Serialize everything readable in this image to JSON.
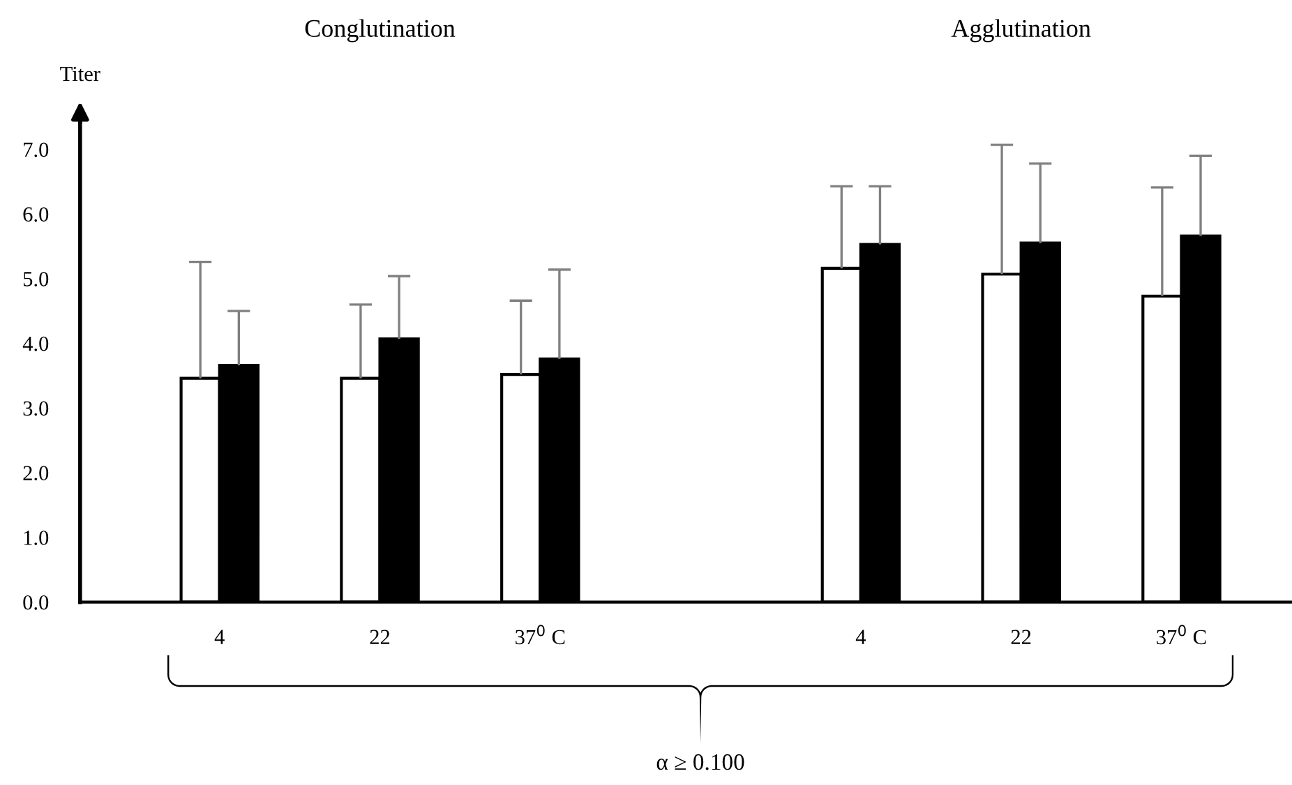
{
  "chart_data": {
    "type": "bar",
    "categories": [
      "4",
      "22",
      "37$^{0}$ C",
      null,
      "4",
      "22",
      "37$^{0}$ C"
    ],
    "ylabel": "Titer",
    "series": [
      {
        "color": "#ffffff",
        "values": [
          3.46,
          3.46,
          3.52,
          null,
          5.16,
          5.07,
          4.73
        ],
        "errors": [
          [
            3.46,
            5.26
          ],
          [
            3.46,
            4.6
          ],
          [
            3.52,
            4.66
          ],
          null,
          [
            5.16,
            6.43
          ],
          [
            5.07,
            7.07
          ],
          [
            4.73,
            6.41
          ]
        ]
      },
      {
        "color": "#000000",
        "values": [
          3.66,
          4.07,
          3.76,
          null,
          5.53,
          5.55,
          5.66
        ],
        "errors": [
          [
            3.66,
            4.5
          ],
          [
            4.07,
            5.04
          ],
          [
            3.76,
            5.14
          ],
          null,
          [
            5.53,
            6.43
          ],
          [
            5.55,
            6.78
          ],
          [
            5.66,
            6.9
          ]
        ]
      }
    ],
    "ylim": [
      0,
      7.5
    ],
    "yticks": [
      {
        "value": 0,
        "label": "0.0"
      },
      {
        "value": 1,
        "label": "1.0"
      },
      {
        "value": 2,
        "label": "2.0"
      },
      {
        "value": 3,
        "label": "3.0"
      },
      {
        "value": 4,
        "label": "4.0"
      },
      {
        "value": 5,
        "label": "5.0"
      },
      {
        "value": 6,
        "label": "6.0"
      },
      {
        "value": 7,
        "label": "7.0"
      }
    ],
    "grid": false,
    "legend": false,
    "annotations": [
      "Conglutination",
      "Agglutination",
      "α ≥ 0.100"
    ]
  }
}
